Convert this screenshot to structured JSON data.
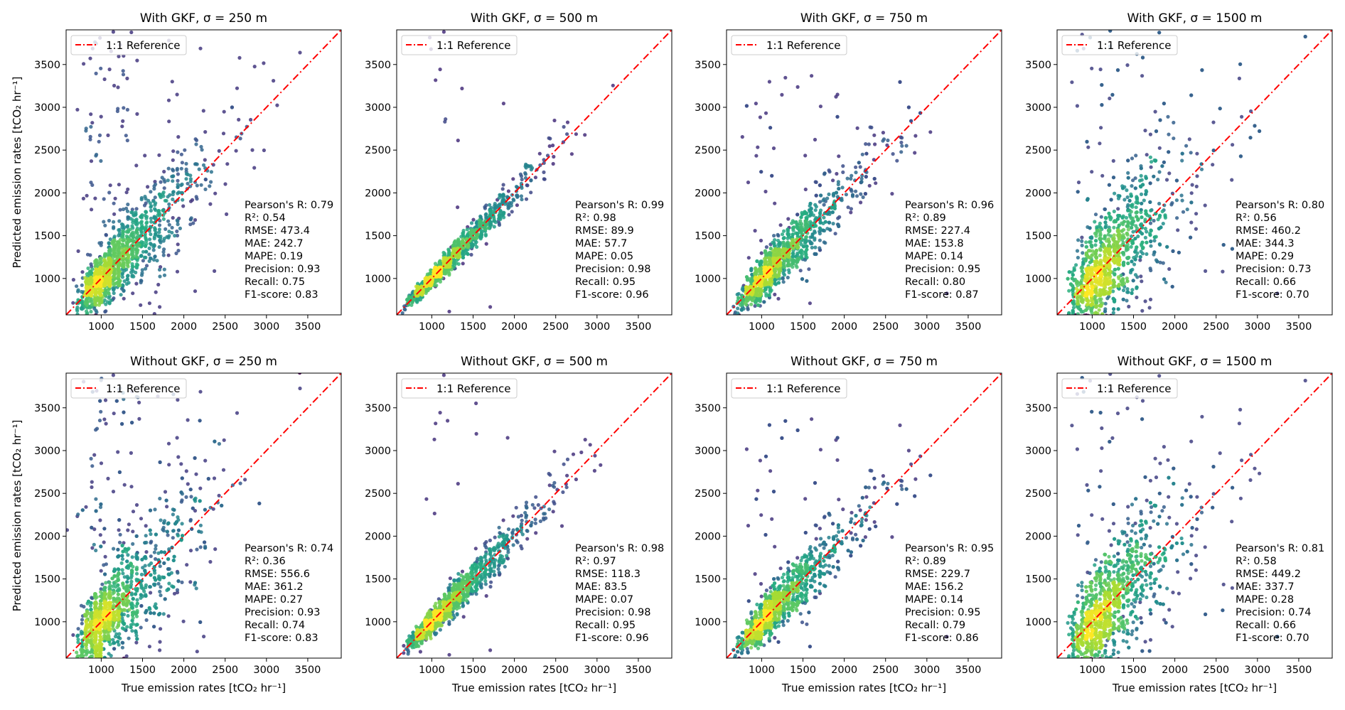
{
  "chart_data": [
    {
      "type": "scatter",
      "title": "With GKF, σ = 250 m",
      "group": "With GKF",
      "sigma_m": 250,
      "stats": [
        "Pearson's R: 0.79",
        "R²: 0.54",
        "RMSE: 473.4",
        "MAE: 242.7",
        "MAPE: 0.19",
        "Precision: 0.93",
        "Recall: 0.75",
        "F1-score: 0.83"
      ]
    },
    {
      "type": "scatter",
      "title": "With GKF, σ = 500 m",
      "group": "With GKF",
      "sigma_m": 500,
      "stats": [
        "Pearson's R: 0.99",
        "R²: 0.98",
        "RMSE: 89.9",
        "MAE: 57.7",
        "MAPE: 0.05",
        "Precision: 0.98",
        "Recall: 0.95",
        "F1-score: 0.96"
      ]
    },
    {
      "type": "scatter",
      "title": "With GKF, σ = 750 m",
      "group": "With GKF",
      "sigma_m": 750,
      "stats": [
        "Pearson's R: 0.96",
        "R²: 0.89",
        "RMSE: 227.4",
        "MAE: 153.8",
        "MAPE: 0.14",
        "Precision: 0.95",
        "Recall: 0.80",
        "F1-score: 0.87"
      ]
    },
    {
      "type": "scatter",
      "title": "With GKF, σ = 1500 m",
      "group": "With GKF",
      "sigma_m": 1500,
      "stats": [
        "Pearson's R: 0.80",
        "R²: 0.56",
        "RMSE: 460.2",
        "MAE: 344.3",
        "MAPE: 0.29",
        "Precision: 0.73",
        "Recall: 0.66",
        "F1-score: 0.70"
      ]
    },
    {
      "type": "scatter",
      "title": "Without GKF, σ = 250 m",
      "group": "Without GKF",
      "sigma_m": 250,
      "stats": [
        "Pearson's R: 0.74",
        "R²: 0.36",
        "RMSE: 556.6",
        "MAE: 361.2",
        "MAPE: 0.27",
        "Precision: 0.93",
        "Recall: 0.74",
        "F1-score: 0.83"
      ]
    },
    {
      "type": "scatter",
      "title": "Without GKF, σ = 500 m",
      "group": "Without GKF",
      "sigma_m": 500,
      "stats": [
        "Pearson's R: 0.98",
        "R²: 0.97",
        "RMSE: 118.3",
        "MAE: 83.5",
        "MAPE: 0.07",
        "Precision: 0.98",
        "Recall: 0.95",
        "F1-score: 0.96"
      ]
    },
    {
      "type": "scatter",
      "title": "Without GKF, σ = 750 m",
      "group": "Without GKF",
      "sigma_m": 750,
      "stats": [
        "Pearson's R: 0.95",
        "R²: 0.89",
        "RMSE: 229.7",
        "MAE: 156.2",
        "MAPE: 0.14",
        "Precision: 0.95",
        "Recall: 0.79",
        "F1-score: 0.86"
      ]
    },
    {
      "type": "scatter",
      "title": "Without GKF, σ = 1500 m",
      "group": "Without GKF",
      "sigma_m": 1500,
      "stats": [
        "Pearson's R: 0.81",
        "R²: 0.58",
        "RMSE: 449.2",
        "MAE: 337.7",
        "MAPE: 0.28",
        "Precision: 0.74",
        "Recall: 0.66",
        "F1-score: 0.70"
      ]
    }
  ],
  "axes": {
    "xlabel": "True emission rates [tCO₂ hr⁻¹]",
    "ylabel": "Predicted emission rates [tCO₂ hr⁻¹]",
    "xlim": [
      575,
      3905
    ],
    "ylim": [
      575,
      3905
    ],
    "ticks": [
      1000,
      1500,
      2000,
      2500,
      3000,
      3500
    ],
    "grid": false
  },
  "legend": {
    "label": "1:1 Reference",
    "placement": "top-left",
    "color": "#ff0000",
    "style": "dash-dot"
  },
  "colormap": "viridis (point density)"
}
